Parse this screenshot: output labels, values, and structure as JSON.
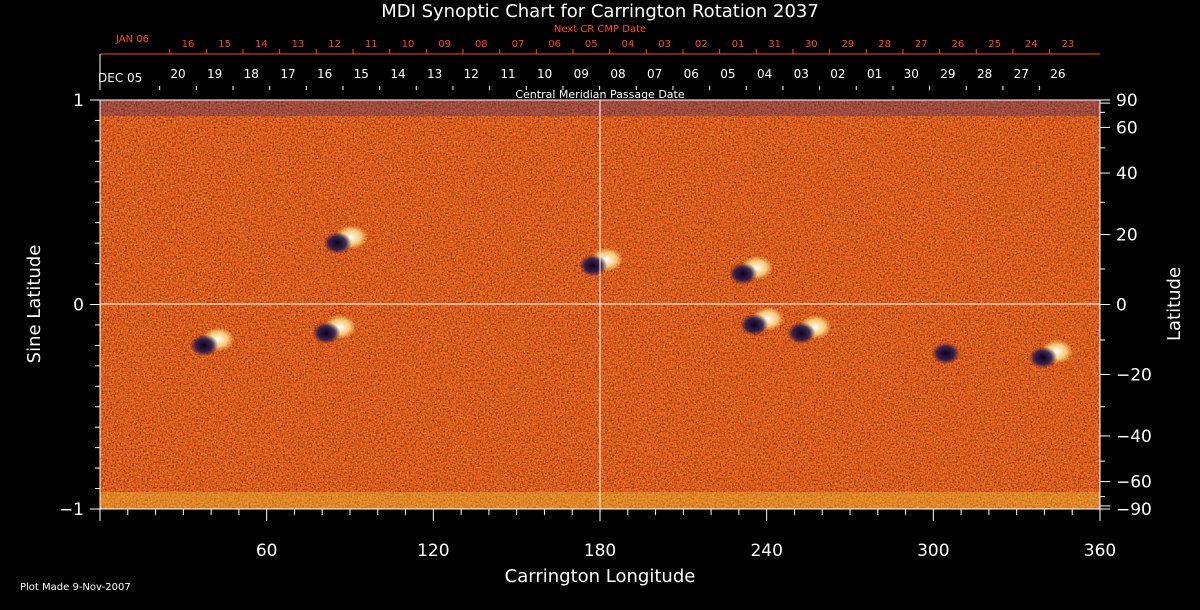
{
  "chart_data": {
    "type": "heatmap",
    "title": "MDI Synoptic Chart for Carrington Rotation 2037",
    "xlabel": "Carrington Longitude",
    "ylabel_left": "Sine Latitude",
    "ylabel_right": "Latitude",
    "xlim": [
      0,
      360
    ],
    "ylim": [
      -1,
      1
    ],
    "x_ticks": [
      60,
      120,
      180,
      240,
      300,
      360
    ],
    "y_left_ticks": [
      {
        "value": 1,
        "label": "1"
      },
      {
        "value": 0,
        "label": "0"
      },
      {
        "value": -1,
        "label": "−1"
      }
    ],
    "y_right_ticks": [
      {
        "lat": 90,
        "label": "90"
      },
      {
        "lat": 60,
        "label": "60"
      },
      {
        "lat": 40,
        "label": "40"
      },
      {
        "lat": 20,
        "label": "20"
      },
      {
        "lat": 0,
        "label": "0"
      },
      {
        "lat": -20,
        "label": "−20"
      },
      {
        "lat": -40,
        "label": "−40"
      },
      {
        "lat": -60,
        "label": "−60"
      },
      {
        "lat": -90,
        "label": "−90"
      }
    ],
    "top_axis": {
      "title": "Central Meridian Passage Date",
      "start_label": "DEC 05",
      "dates": [
        "20",
        "19",
        "18",
        "17",
        "16",
        "15",
        "14",
        "13",
        "12",
        "11",
        "10",
        "09",
        "08",
        "07",
        "06",
        "05",
        "04",
        "03",
        "02",
        "01",
        "30",
        "29",
        "28",
        "27",
        "26"
      ]
    },
    "next_rotation_axis": {
      "title": "Next CR CMP Date",
      "start_label": "JAN 06",
      "dates": [
        "16",
        "15",
        "14",
        "13",
        "12",
        "11",
        "10",
        "09",
        "08",
        "07",
        "06",
        "05",
        "04",
        "03",
        "02",
        "01",
        "31",
        "30",
        "29",
        "28",
        "27",
        "26",
        "25",
        "24",
        "23"
      ]
    },
    "active_regions": [
      {
        "lon": 88,
        "sinlat": 0.32,
        "polarity": "mixed"
      },
      {
        "lon": 84,
        "sinlat": -0.12,
        "polarity": "mixed"
      },
      {
        "lon": 40,
        "sinlat": -0.18,
        "polarity": "mixed"
      },
      {
        "lon": 180,
        "sinlat": 0.21,
        "polarity": "mixed"
      },
      {
        "lon": 234,
        "sinlat": 0.17,
        "polarity": "mixed"
      },
      {
        "lon": 238,
        "sinlat": -0.08,
        "polarity": "mixed"
      },
      {
        "lon": 255,
        "sinlat": -0.12,
        "polarity": "mixed"
      },
      {
        "lon": 307,
        "sinlat": -0.22,
        "polarity": "negative"
      },
      {
        "lon": 342,
        "sinlat": -0.24,
        "polarity": "mixed"
      }
    ],
    "colors": {
      "background": "#000000",
      "field": "#e04a12",
      "accent": "#ff4a1a",
      "positive": "#fff4c0",
      "negative": "#1a1040"
    }
  },
  "footer": {
    "plot_made": "Plot Made  9-Nov-2007"
  }
}
